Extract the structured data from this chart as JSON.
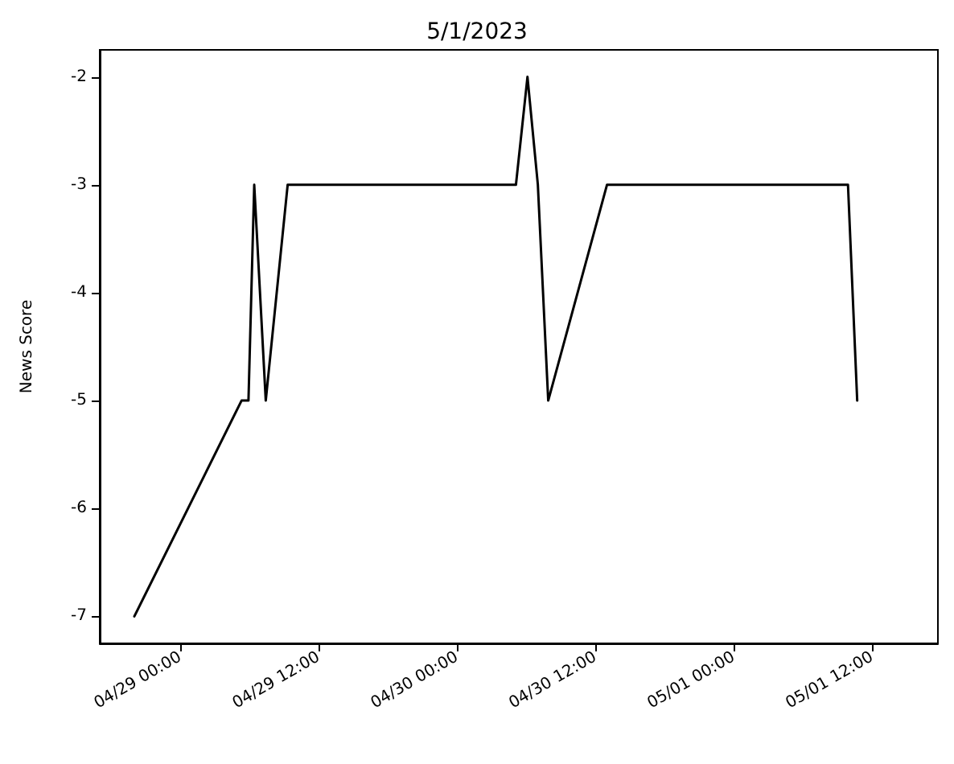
{
  "chart_data": {
    "type": "line",
    "title": "5/1/2023",
    "ylabel": "News Score",
    "x": [
      "2023-04-28T20:00",
      "2023-04-29T05:18",
      "2023-04-29T05:54",
      "2023-04-29T06:24",
      "2023-04-29T07:24",
      "2023-04-29T09:18",
      "2023-04-30T05:06",
      "2023-04-30T06:06",
      "2023-04-30T07:00",
      "2023-04-30T07:54",
      "2023-04-30T13:00",
      "2023-05-01T09:54",
      "2023-05-01T10:42"
    ],
    "series": [
      {
        "color": "#000000",
        "values": [
          -7,
          -5,
          -5,
          -3,
          -5,
          -3,
          -3,
          -2,
          -3,
          -5,
          -3,
          -3,
          -5
        ]
      }
    ],
    "xlim": [
      "2023-04-28T17:00",
      "2023-05-01T17:42"
    ],
    "xticks": [
      {
        "value": "2023-04-29T00:00",
        "label": "04/29 00:00"
      },
      {
        "value": "2023-04-29T12:00",
        "label": "04/29 12:00"
      },
      {
        "value": "2023-04-30T00:00",
        "label": "04/30 00:00"
      },
      {
        "value": "2023-04-30T12:00",
        "label": "04/30 12:00"
      },
      {
        "value": "2023-05-01T00:00",
        "label": "05/01 00:00"
      },
      {
        "value": "2023-05-01T12:00",
        "label": "05/01 12:00"
      }
    ],
    "ylim": [
      -7.25,
      -1.75
    ],
    "yticks": [
      -7,
      -6,
      -5,
      -4,
      -3,
      -2
    ],
    "grid": false,
    "marker": "none",
    "line_style": "solid"
  }
}
